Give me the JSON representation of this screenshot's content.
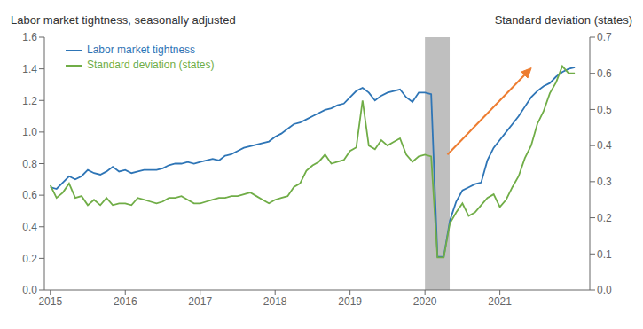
{
  "chart_data": {
    "type": "line",
    "ylabel": "Labor market tightness, seasonally adjusted",
    "y2label": "Standard deviation (states)",
    "legend": "upper left",
    "grid": false,
    "xlim": [
      2014.92,
      2022.2
    ],
    "xticks": [
      2015,
      2016,
      2017,
      2018,
      2019,
      2020,
      2021
    ],
    "ylim": [
      0.0,
      1.6
    ],
    "yticks": [
      {
        "value": 0.0,
        "label": "0.0"
      },
      0.2,
      0.4,
      0.6,
      0.8,
      {
        "value": 1.0,
        "label": "1.0"
      },
      1.2,
      1.4,
      1.6
    ],
    "y2lim": [
      0.0,
      0.7
    ],
    "y2ticks": [
      {
        "value": 0.0,
        "label": "0.0"
      },
      0.1,
      0.2,
      0.3,
      0.4,
      0.5,
      0.6,
      0.7
    ],
    "x": [
      2015.0,
      2015.083,
      2015.167,
      2015.25,
      2015.333,
      2015.417,
      2015.5,
      2015.583,
      2015.667,
      2015.75,
      2015.833,
      2015.917,
      2016.0,
      2016.083,
      2016.167,
      2016.25,
      2016.333,
      2016.417,
      2016.5,
      2016.583,
      2016.667,
      2016.75,
      2016.833,
      2016.917,
      2017.0,
      2017.083,
      2017.167,
      2017.25,
      2017.333,
      2017.417,
      2017.5,
      2017.583,
      2017.667,
      2017.75,
      2017.833,
      2017.917,
      2018.0,
      2018.083,
      2018.167,
      2018.25,
      2018.333,
      2018.417,
      2018.5,
      2018.583,
      2018.667,
      2018.75,
      2018.833,
      2018.917,
      2019.0,
      2019.083,
      2019.167,
      2019.25,
      2019.333,
      2019.417,
      2019.5,
      2019.583,
      2019.667,
      2019.75,
      2019.833,
      2019.917,
      2020.0,
      2020.083,
      2020.167,
      2020.25,
      2020.333,
      2020.417,
      2020.5,
      2020.583,
      2020.667,
      2020.75,
      2020.833,
      2020.917,
      2021.0,
      2021.083,
      2021.167,
      2021.25,
      2021.333,
      2021.417,
      2021.5,
      2021.583,
      2021.667,
      2021.75,
      2021.833,
      2021.917,
      2022.0
    ],
    "series": [
      {
        "name": "Labor market tightness",
        "color": "#2E75B6",
        "axis": "y",
        "values": [
          0.65,
          0.64,
          0.68,
          0.72,
          0.7,
          0.72,
          0.76,
          0.74,
          0.73,
          0.75,
          0.78,
          0.75,
          0.76,
          0.74,
          0.75,
          0.76,
          0.76,
          0.76,
          0.77,
          0.79,
          0.8,
          0.8,
          0.81,
          0.8,
          0.81,
          0.82,
          0.83,
          0.82,
          0.85,
          0.86,
          0.88,
          0.9,
          0.91,
          0.92,
          0.93,
          0.94,
          0.97,
          0.99,
          1.02,
          1.05,
          1.06,
          1.08,
          1.1,
          1.12,
          1.14,
          1.15,
          1.17,
          1.18,
          1.22,
          1.26,
          1.28,
          1.25,
          1.2,
          1.23,
          1.25,
          1.26,
          1.27,
          1.22,
          1.19,
          1.25,
          1.25,
          1.24,
          0.21,
          0.21,
          0.44,
          0.56,
          0.63,
          0.65,
          0.67,
          0.68,
          0.82,
          0.9,
          0.95,
          1.0,
          1.05,
          1.1,
          1.16,
          1.22,
          1.26,
          1.29,
          1.31,
          1.35,
          1.38,
          1.4,
          1.41
        ]
      },
      {
        "name": "Standard deviation (states)",
        "color": "#70AD47",
        "axis": "y2",
        "values": [
          0.29,
          0.255,
          0.27,
          0.295,
          0.255,
          0.26,
          0.235,
          0.25,
          0.235,
          0.255,
          0.235,
          0.24,
          0.24,
          0.235,
          0.255,
          0.25,
          0.245,
          0.24,
          0.245,
          0.255,
          0.255,
          0.26,
          0.25,
          0.24,
          0.24,
          0.245,
          0.25,
          0.255,
          0.255,
          0.26,
          0.26,
          0.265,
          0.27,
          0.26,
          0.25,
          0.24,
          0.25,
          0.255,
          0.26,
          0.285,
          0.295,
          0.33,
          0.345,
          0.355,
          0.375,
          0.35,
          0.355,
          0.36,
          0.385,
          0.395,
          0.525,
          0.4,
          0.39,
          0.415,
          0.4,
          0.41,
          0.42,
          0.375,
          0.355,
          0.37,
          0.375,
          0.37,
          0.09,
          0.09,
          0.185,
          0.215,
          0.24,
          0.205,
          0.215,
          0.235,
          0.255,
          0.265,
          0.23,
          0.25,
          0.285,
          0.315,
          0.365,
          0.4,
          0.46,
          0.495,
          0.545,
          0.575,
          0.62,
          0.6,
          0.6
        ]
      }
    ],
    "annotations": [
      {
        "type": "band",
        "x_start": 2020.0,
        "x_end": 2020.33,
        "color": "#BFBFBF"
      },
      {
        "type": "arrow",
        "x": 2020.3,
        "y": 0.375,
        "x_end": 2021.42,
        "y_end": 0.615,
        "axis": "y2",
        "color": "#ED7D31"
      }
    ]
  }
}
